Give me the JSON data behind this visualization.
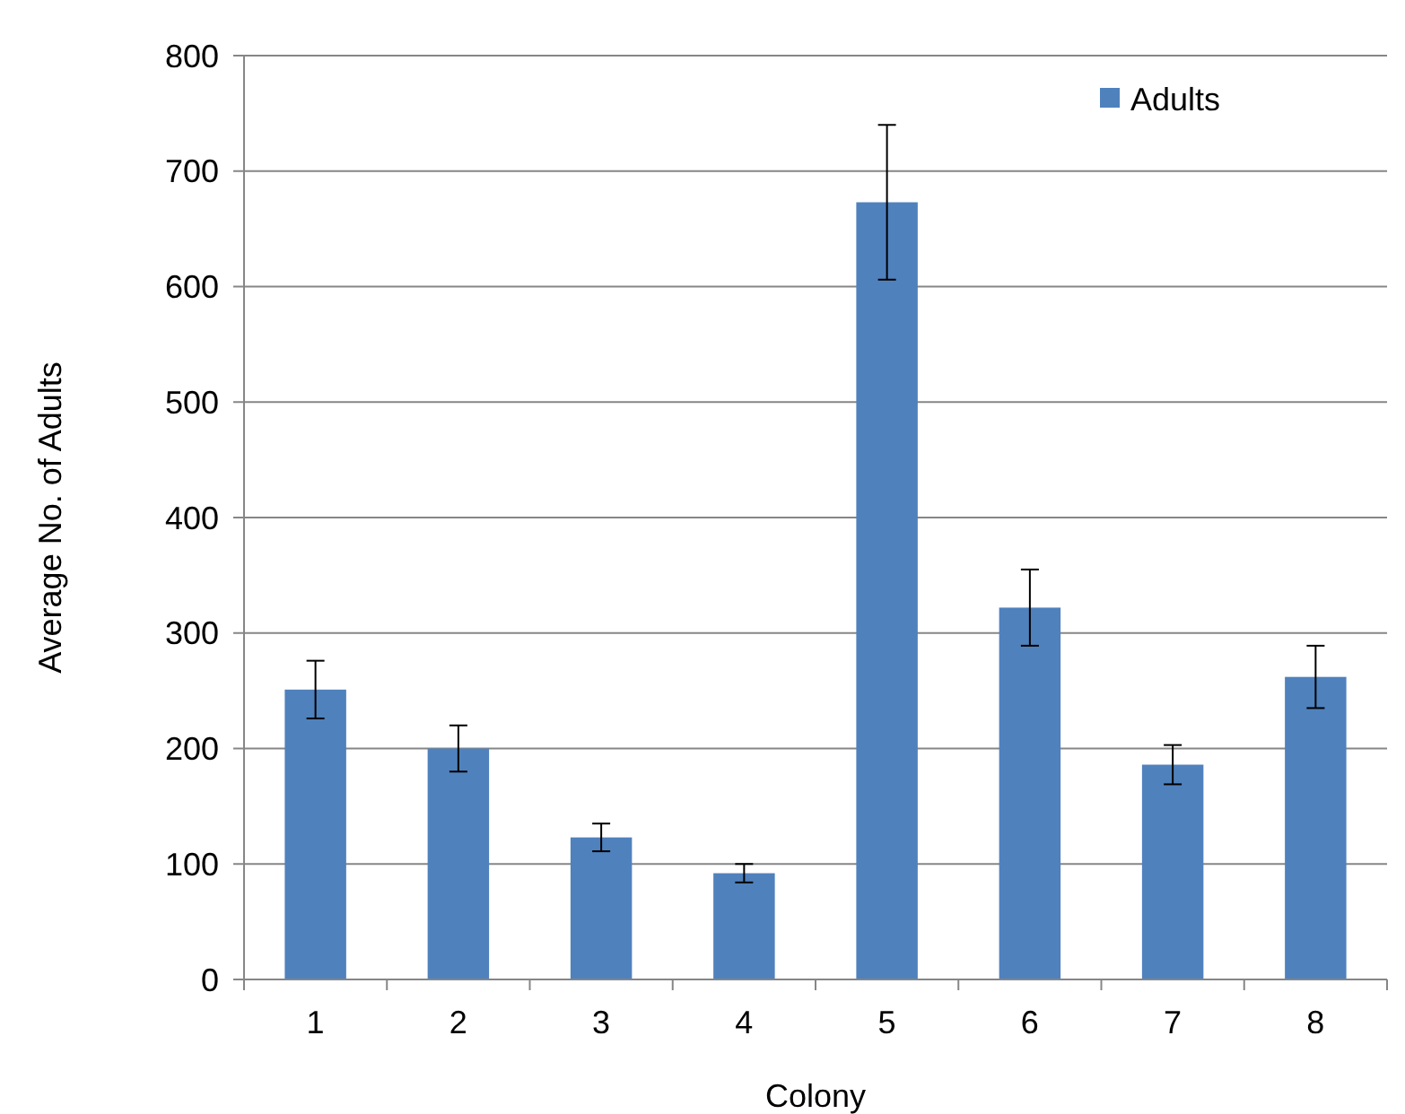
{
  "chart_data": {
    "type": "bar",
    "xlabel": "Colony",
    "ylabel": "Average No. of Adults",
    "categories": [
      "1",
      "2",
      "3",
      "4",
      "5",
      "6",
      "7",
      "8"
    ],
    "series": [
      {
        "name": "Adults",
        "color": "#4f81bd",
        "values": [
          251,
          200,
          123,
          92,
          673,
          322,
          186,
          262
        ],
        "errors": [
          25,
          20,
          12,
          8,
          67,
          33,
          17,
          27
        ]
      }
    ],
    "ylim": [
      0,
      800
    ],
    "yticks": [
      0,
      100,
      200,
      300,
      400,
      500,
      600,
      700,
      800
    ],
    "grid": "y",
    "legend": "top right"
  }
}
